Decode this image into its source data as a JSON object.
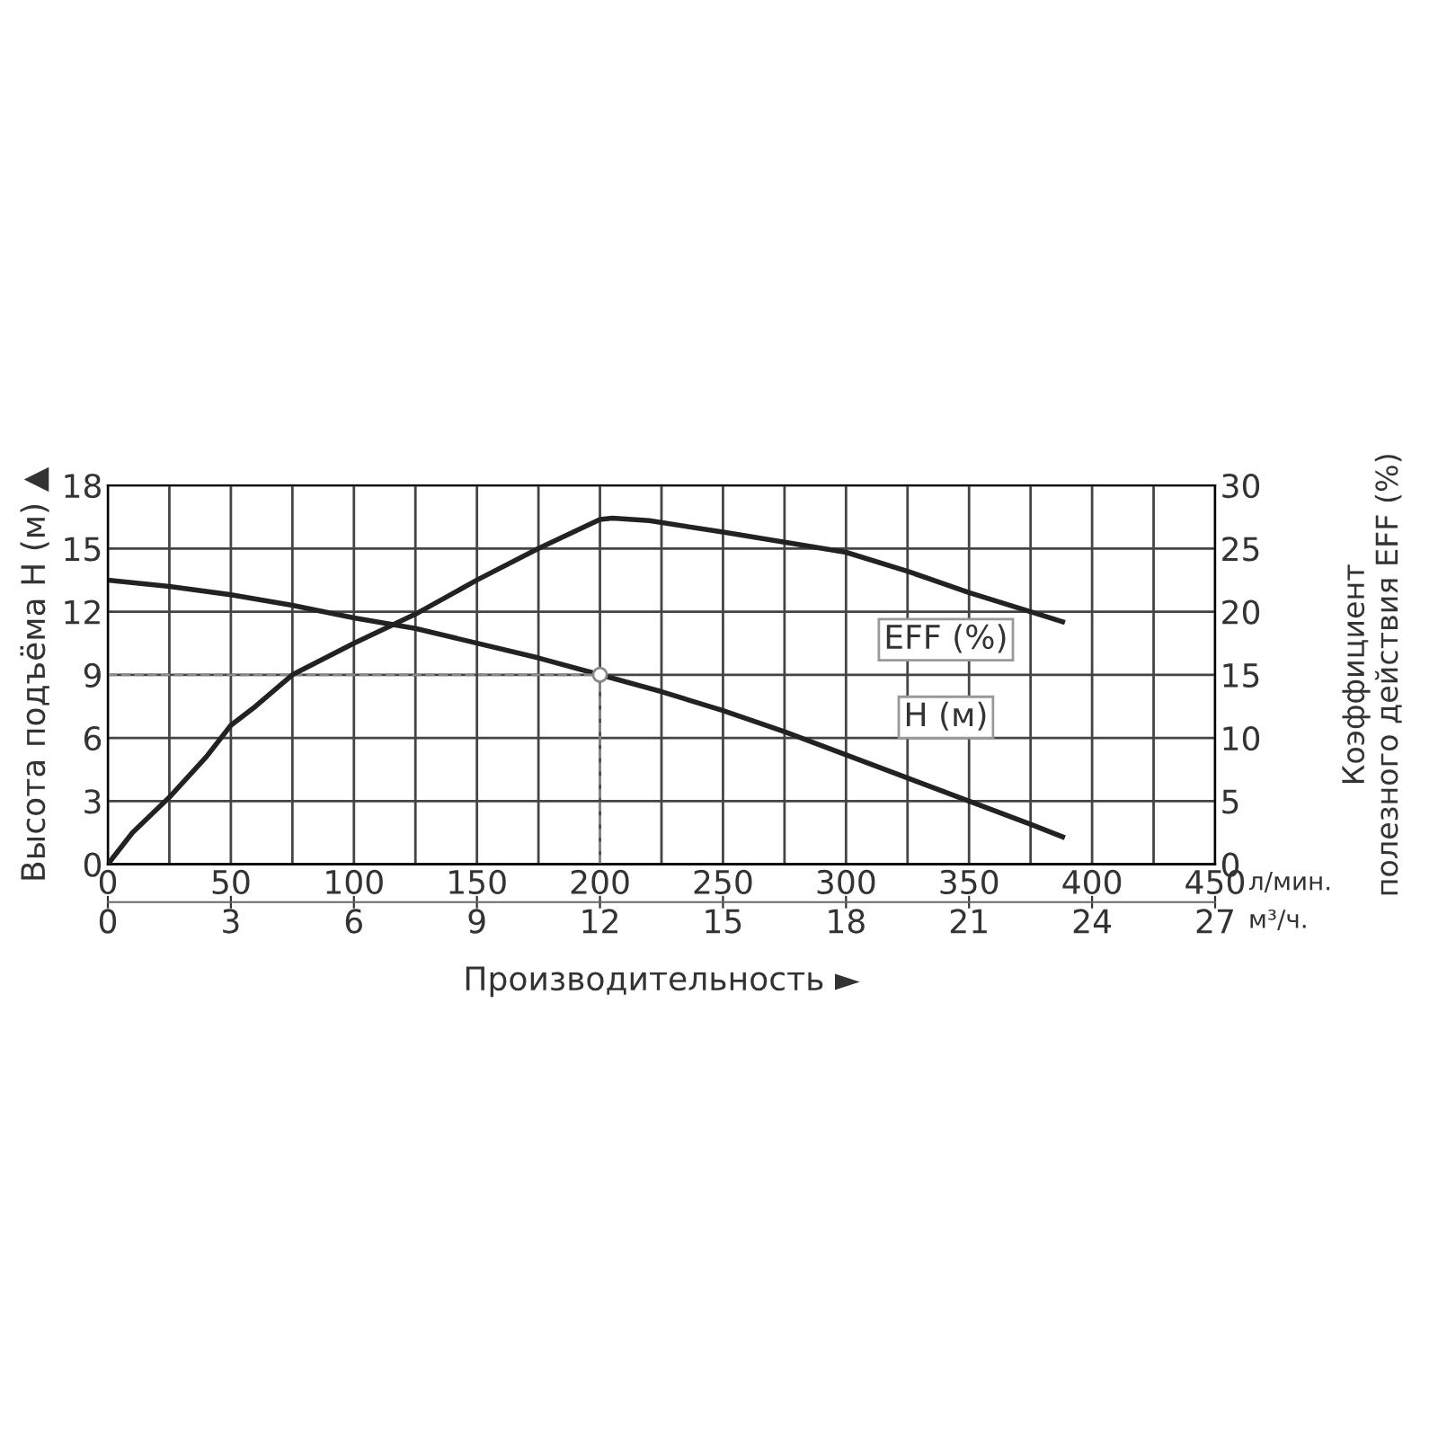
{
  "chart_data": {
    "type": "line",
    "xlabel": "Производительность ►",
    "ylabel": "Высота подъёма H (м) ▲",
    "y2label": "Коэффициент\nполезного действия EFF (%)",
    "series": [
      {
        "name": "H (м)",
        "color": "#222222",
        "x": [
          0,
          25,
          50,
          75,
          100,
          125,
          150,
          175,
          200,
          225,
          250,
          275,
          300,
          325,
          350,
          375,
          388
        ],
        "values": [
          13.5,
          13.2,
          12.8,
          12.3,
          11.7,
          11.2,
          10.5,
          9.8,
          9.0,
          8.2,
          7.3,
          6.3,
          5.2,
          4.1,
          3.0,
          1.9,
          1.3
        ]
      },
      {
        "name": "EFF (%)",
        "color": "#222222",
        "axis": "y2",
        "x": [
          0,
          10,
          25,
          40,
          50,
          60,
          75,
          100,
          125,
          150,
          175,
          200,
          205,
          220,
          250,
          275,
          300,
          325,
          350,
          375,
          388
        ],
        "values": [
          0,
          2.5,
          5.3,
          8.5,
          11,
          12.5,
          15,
          17.5,
          19.8,
          22.5,
          25,
          27.3,
          27.4,
          27.2,
          26.3,
          25.5,
          24.7,
          23.2,
          21.5,
          20,
          19.2
        ]
      },
      {
        "type": "scatter",
        "color": "#ffffff",
        "marker": "circle",
        "x": [
          200
        ],
        "values": [
          9
        ]
      }
    ],
    "ref_lines": [
      {
        "axis": "y",
        "value": 9,
        "color": "#888888",
        "line_style": "dashed"
      },
      {
        "axis": "x",
        "value": 200,
        "color": "#888888",
        "line_style": "dashed"
      }
    ],
    "xlim": [
      0,
      450
    ],
    "xticks": [
      0,
      {
        "value": 25,
        "label": null
      },
      50,
      {
        "value": 75,
        "label": null
      },
      100,
      {
        "value": 125,
        "label": null
      },
      150,
      {
        "value": 175,
        "label": null
      },
      200,
      {
        "value": 225,
        "label": null
      },
      250,
      {
        "value": 275,
        "label": null
      },
      300,
      {
        "value": 325,
        "label": null
      },
      350,
      {
        "value": 375,
        "label": null
      },
      400,
      {
        "value": 425,
        "label": null
      },
      450
    ],
    "x2lim": [
      0,
      27
    ],
    "x2ticks": [
      0,
      3,
      6,
      9,
      12,
      15,
      18,
      21,
      24,
      27
    ],
    "ylim": [
      0,
      18
    ],
    "yticks": [
      0,
      3,
      6,
      9,
      12,
      15,
      18
    ],
    "y2lim": [
      0,
      30
    ],
    "y2ticks": [
      0,
      5,
      10,
      15,
      20,
      25,
      30
    ],
    "grid": true,
    "legend": false,
    "marker": "none",
    "line_style": "solid",
    "annotations": [
      "л/мин.",
      "м³/ч."
    ]
  }
}
